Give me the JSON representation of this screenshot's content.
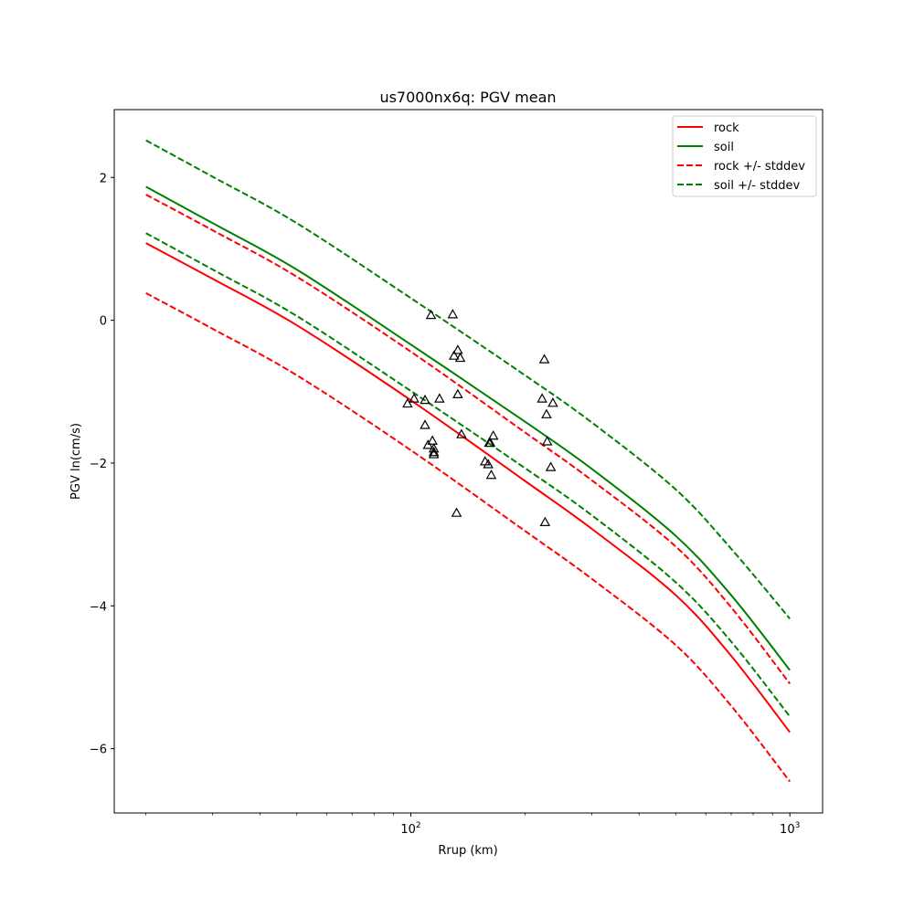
{
  "chart_data": {
    "type": "line",
    "title": "us7000nx6q: PGV mean",
    "xlabel": "Rrup (km)",
    "ylabel": "PGV ln(cm/s)",
    "xscale": "log",
    "xlim": [
      16.5,
      1220
    ],
    "ylim": [
      -6.9,
      2.95
    ],
    "x_ticks": [
      {
        "value": 100,
        "base": "10",
        "exp": "2"
      },
      {
        "value": 1000,
        "base": "10",
        "exp": "3"
      }
    ],
    "y_ticks": [
      {
        "value": 2,
        "label": "2"
      },
      {
        "value": 0,
        "label": "0"
      },
      {
        "value": -2,
        "label": "−2"
      },
      {
        "value": -4,
        "label": "−4"
      },
      {
        "value": -6,
        "label": "−6"
      }
    ],
    "grid": false,
    "legend_position": "top-right",
    "series": [
      {
        "name": "rock",
        "color": "#ff0000",
        "dash": "solid",
        "x": [
          20,
          30,
          50,
          100,
          200,
          300,
          500,
          700,
          1000
        ],
        "y": [
          1.08,
          0.58,
          -0.07,
          -1.12,
          -2.25,
          -2.92,
          -3.85,
          -4.7,
          -5.77
        ]
      },
      {
        "name": "soil",
        "color": "#008000",
        "dash": "solid",
        "x": [
          20,
          30,
          50,
          100,
          200,
          300,
          500,
          700,
          1000
        ],
        "y": [
          1.87,
          1.36,
          0.71,
          -0.34,
          -1.42,
          -2.08,
          -3.02,
          -3.85,
          -4.9
        ]
      },
      {
        "name": "rock +/- stddev",
        "color": "#ff0000",
        "dash": "dashed",
        "x": [
          20,
          30,
          50,
          100,
          200,
          300,
          500,
          700,
          1000
        ],
        "y": [
          1.76,
          1.26,
          0.61,
          -0.44,
          -1.57,
          -2.24,
          -3.17,
          -4.02,
          -5.09
        ]
      },
      {
        "name": "",
        "color": "#ff0000",
        "dash": "dashed",
        "x": [
          20,
          30,
          50,
          100,
          200,
          300,
          500,
          700,
          1000
        ],
        "y": [
          0.38,
          -0.12,
          -0.77,
          -1.82,
          -2.95,
          -3.62,
          -4.55,
          -5.4,
          -6.46
        ]
      },
      {
        "name": "soil +/- stddev",
        "color": "#008000",
        "dash": "dashed",
        "x": [
          20,
          30,
          50,
          100,
          200,
          300,
          500,
          700,
          1000
        ],
        "y": [
          2.52,
          2.01,
          1.36,
          0.31,
          -0.77,
          -1.43,
          -2.37,
          -3.2,
          -4.18
        ]
      },
      {
        "name": "",
        "color": "#008000",
        "dash": "dashed",
        "x": [
          20,
          30,
          50,
          100,
          200,
          300,
          500,
          700,
          1000
        ],
        "y": [
          1.22,
          0.71,
          0.06,
          -0.99,
          -2.07,
          -2.73,
          -3.67,
          -4.5,
          -5.55
        ]
      }
    ],
    "legend_entries": [
      "rock",
      "soil",
      "rock +/- stddev",
      "soil +/- stddev"
    ],
    "scatter": {
      "marker": "triangle-open",
      "color": "#000000",
      "points": [
        [
          98,
          -1.17
        ],
        [
          102,
          -1.1
        ],
        [
          109,
          -1.12
        ],
        [
          109,
          -1.47
        ],
        [
          111,
          -1.75
        ],
        [
          113,
          0.07
        ],
        [
          114,
          -1.69
        ],
        [
          115,
          -1.8
        ],
        [
          115,
          -1.85
        ],
        [
          115,
          -1.88
        ],
        [
          119,
          -1.1
        ],
        [
          129,
          0.08
        ],
        [
          130,
          -0.5
        ],
        [
          132,
          -2.7
        ],
        [
          133,
          -0.42
        ],
        [
          133,
          -1.04
        ],
        [
          135,
          -0.53
        ],
        [
          136,
          -1.6
        ],
        [
          157,
          -1.98
        ],
        [
          160,
          -2.02
        ],
        [
          161,
          -1.72
        ],
        [
          162,
          -1.72
        ],
        [
          163,
          -2.17
        ],
        [
          165,
          -1.62
        ],
        [
          222,
          -1.1
        ],
        [
          225,
          -0.55
        ],
        [
          226,
          -2.83
        ],
        [
          228,
          -1.32
        ],
        [
          229,
          -1.7
        ],
        [
          234,
          -2.06
        ],
        [
          237,
          -1.16
        ]
      ]
    }
  }
}
